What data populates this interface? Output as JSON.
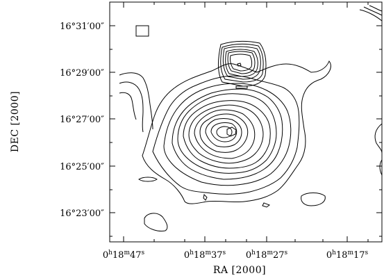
{
  "axes": {
    "x_label": "RA [2000]",
    "y_label": "DEC [2000]",
    "x_ticks": [
      {
        "h": "0",
        "m": "18",
        "s": "47"
      },
      {
        "h": "0",
        "m": "18",
        "s": "37"
      },
      {
        "h": "0",
        "m": "18",
        "s": "27"
      },
      {
        "h": "0",
        "m": "18",
        "s": "17"
      }
    ],
    "y_ticks": [
      "16°31′00″",
      "16°29′00″",
      "16°27′00″",
      "16°25′00″",
      "16°23′00″"
    ]
  },
  "map": {
    "beam_marker": "beam-box",
    "sources": [
      {
        "name": "main-source",
        "contour_levels": 13
      },
      {
        "name": "compact-source",
        "contour_levels": 7
      }
    ]
  }
}
